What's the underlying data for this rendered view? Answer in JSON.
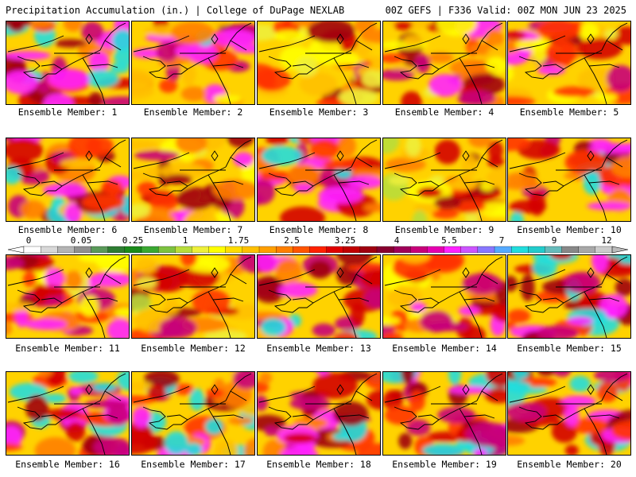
{
  "header": {
    "left": "Precipitation Accumulation (in.) | College of DuPage NEXLAB",
    "right": "00Z GEFS | F336 Valid: 00Z MON JUN 23 2025"
  },
  "panels": [
    {
      "label": "Ensemble Member: 1",
      "intensity": 0.72
    },
    {
      "label": "Ensemble Member: 2",
      "intensity": 0.55
    },
    {
      "label": "Ensemble Member: 3",
      "intensity": 0.4
    },
    {
      "label": "Ensemble Member: 4",
      "intensity": 0.5
    },
    {
      "label": "Ensemble Member: 5",
      "intensity": 0.48
    },
    {
      "label": "Ensemble Member: 6",
      "intensity": 0.6
    },
    {
      "label": "Ensemble Member: 7",
      "intensity": 0.5
    },
    {
      "label": "Ensemble Member: 8",
      "intensity": 0.68
    },
    {
      "label": "Ensemble Member: 9",
      "intensity": 0.35
    },
    {
      "label": "Ensemble Member: 10",
      "intensity": 0.62
    },
    {
      "label": "Ensemble Member: 11",
      "intensity": 0.5
    },
    {
      "label": "Ensemble Member: 12",
      "intensity": 0.38
    },
    {
      "label": "Ensemble Member: 13",
      "intensity": 0.6
    },
    {
      "label": "Ensemble Member: 14",
      "intensity": 0.5
    },
    {
      "label": "Ensemble Member: 15",
      "intensity": 0.75
    },
    {
      "label": "Ensemble Member: 16",
      "intensity": 0.72
    },
    {
      "label": "Ensemble Member: 17",
      "intensity": 0.65
    },
    {
      "label": "Ensemble Member: 18",
      "intensity": 0.7
    },
    {
      "label": "Ensemble Member: 19",
      "intensity": 0.78
    },
    {
      "label": "Ensemble Member: 20",
      "intensity": 0.7
    }
  ],
  "colorbar": {
    "labels": [
      "0",
      "0.05",
      "0.25",
      "1",
      "1.75",
      "2.5",
      "3.25",
      "4",
      "5.5",
      "7",
      "9",
      "12"
    ],
    "colors": [
      "#ffffff",
      "#d8d8d8",
      "#b4b4b4",
      "#909090",
      "#5a9a5a",
      "#2e7d32",
      "#1b8a1b",
      "#3aa832",
      "#7cc240",
      "#b8dd3c",
      "#eef03a",
      "#ffff00",
      "#ffdd00",
      "#ffc000",
      "#ff9f00",
      "#ff7f00",
      "#ff5500",
      "#ff2200",
      "#e00000",
      "#c00000",
      "#a00010",
      "#880030",
      "#a0005a",
      "#c8007a",
      "#e600b0",
      "#ff22ff",
      "#cc55ff",
      "#8877ff",
      "#55aaff",
      "#22dddd",
      "#22cccc",
      "#66bbbb",
      "#888888",
      "#a8a8a8",
      "#cccccc"
    ]
  }
}
